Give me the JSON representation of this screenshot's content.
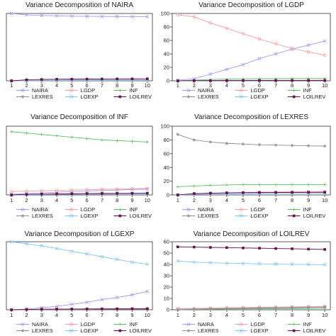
{
  "chart_data": [
    {
      "type": "line",
      "title": "Variance Decomposition of NAIRA",
      "x": [
        1,
        2,
        3,
        4,
        5,
        6,
        7,
        8,
        9,
        10
      ],
      "ylim": [
        0,
        100
      ],
      "yticks": [],
      "series": [
        {
          "name": "NAIRA",
          "color": "#9c9cff",
          "marker": "x",
          "values": [
            100,
            98,
            97,
            96.5,
            96,
            95.8,
            95.6,
            95.4,
            95.3,
            95.2
          ]
        },
        {
          "name": "LGDP",
          "color": "#ff9c9c",
          "marker": "circle",
          "values": [
            0,
            0.3,
            0.5,
            0.6,
            0.7,
            0.8,
            0.9,
            1.0,
            1.0,
            1.1
          ]
        },
        {
          "name": "INF",
          "color": "#5cc05c",
          "marker": "plus",
          "values": [
            0,
            0.2,
            0.4,
            0.5,
            0.6,
            0.6,
            0.7,
            0.7,
            0.7,
            0.8
          ]
        },
        {
          "name": "LEXRES",
          "color": "#909090",
          "marker": "star",
          "values": [
            0,
            0.5,
            0.8,
            1.0,
            1.1,
            1.2,
            1.2,
            1.3,
            1.3,
            1.3
          ]
        },
        {
          "name": "LGEXP",
          "color": "#7fc8ff",
          "marker": "x",
          "values": [
            0,
            0.2,
            0.3,
            0.4,
            0.5,
            0.5,
            0.6,
            0.6,
            0.6,
            0.6
          ]
        },
        {
          "name": "LOILREV",
          "color": "#6a0d4a",
          "marker": "square",
          "values": [
            0,
            1.5,
            2.0,
            2.3,
            2.5,
            2.6,
            2.7,
            2.8,
            2.9,
            3.0
          ]
        }
      ]
    },
    {
      "type": "line",
      "title": "Variance Decomposition of LGDP",
      "x": [
        1,
        2,
        3,
        4,
        5,
        6,
        7,
        8,
        9,
        10
      ],
      "ylim": [
        0,
        100
      ],
      "yticks": [
        0,
        20,
        40,
        60,
        80,
        100
      ],
      "series": [
        {
          "name": "NAIRA",
          "color": "#9c9cff",
          "marker": "x",
          "values": [
            1,
            3,
            10,
            17,
            24,
            33,
            40,
            47,
            53,
            59
          ]
        },
        {
          "name": "LGDP",
          "color": "#ff9c9c",
          "marker": "circle",
          "values": [
            98,
            95,
            86,
            78,
            70,
            62,
            55,
            48,
            43,
            38
          ]
        },
        {
          "name": "INF",
          "color": "#5cc05c",
          "marker": "plus",
          "values": [
            0,
            1,
            2,
            2.5,
            3,
            3.2,
            3.4,
            3.5,
            3.5,
            3.6
          ]
        },
        {
          "name": "LEXRES",
          "color": "#909090",
          "marker": "star",
          "values": [
            0,
            0.3,
            0.5,
            0.6,
            0.7,
            0.8,
            0.8,
            0.9,
            0.9,
            1.0
          ]
        },
        {
          "name": "LGEXP",
          "color": "#7fc8ff",
          "marker": "x",
          "values": [
            0,
            0.2,
            0.3,
            0.3,
            0.4,
            0.4,
            0.5,
            0.5,
            0.5,
            0.5
          ]
        },
        {
          "name": "LOILREV",
          "color": "#6a0d4a",
          "marker": "square",
          "values": [
            0,
            0.2,
            0.3,
            0.4,
            0.5,
            0.5,
            0.5,
            0.6,
            0.6,
            0.6
          ]
        }
      ]
    },
    {
      "type": "line",
      "title": "Variance Decomposition of INF",
      "x": [
        1,
        2,
        3,
        4,
        5,
        6,
        7,
        8,
        9,
        10
      ],
      "ylim": [
        0,
        100
      ],
      "yticks": [],
      "series": [
        {
          "name": "NAIRA",
          "color": "#9c9cff",
          "marker": "x",
          "values": [
            1,
            2,
            3,
            4,
            5,
            5.5,
            6.5,
            7,
            8,
            8.5
          ]
        },
        {
          "name": "LGDP",
          "color": "#ff9c9c",
          "marker": "circle",
          "values": [
            5,
            5.5,
            6,
            6.5,
            7,
            7.5,
            8,
            8.5,
            9,
            9.5
          ]
        },
        {
          "name": "INF",
          "color": "#5cc05c",
          "marker": "plus",
          "values": [
            92,
            90,
            88,
            86,
            84,
            82,
            80,
            79,
            78,
            77
          ]
        },
        {
          "name": "LEXRES",
          "color": "#909090",
          "marker": "star",
          "values": [
            0,
            0.5,
            1,
            1.3,
            1.5,
            1.7,
            1.9,
            2.0,
            2.1,
            2.2
          ]
        },
        {
          "name": "LGEXP",
          "color": "#7fc8ff",
          "marker": "x",
          "values": [
            0,
            0.3,
            0.6,
            0.8,
            1.0,
            1.2,
            1.3,
            1.4,
            1.5,
            1.6
          ]
        },
        {
          "name": "LOILREV",
          "color": "#6a0d4a",
          "marker": "square",
          "values": [
            0,
            0.8,
            1.2,
            1.5,
            1.8,
            2.0,
            2.2,
            2.3,
            2.4,
            2.5
          ]
        }
      ]
    },
    {
      "type": "line",
      "title": "Variance Decomposition of LEXRES",
      "x": [
        1,
        2,
        3,
        4,
        5,
        6,
        7,
        8,
        9,
        10
      ],
      "ylim": [
        0,
        100
      ],
      "yticks": [
        0,
        20,
        40,
        60,
        80,
        100
      ],
      "series": [
        {
          "name": "NAIRA",
          "color": "#9c9cff",
          "marker": "x",
          "values": [
            0,
            1,
            1.5,
            2,
            2.5,
            3,
            3.3,
            3.6,
            3.8,
            4
          ]
        },
        {
          "name": "LGDP",
          "color": "#ff9c9c",
          "marker": "circle",
          "values": [
            0,
            1.5,
            2.5,
            3,
            3.5,
            4,
            4.3,
            4.6,
            4.8,
            5
          ]
        },
        {
          "name": "INF",
          "color": "#5cc05c",
          "marker": "plus",
          "values": [
            12,
            13,
            14,
            14.5,
            15,
            15,
            15,
            15,
            15,
            15
          ]
        },
        {
          "name": "LEXRES",
          "color": "#909090",
          "marker": "star",
          "values": [
            88,
            80,
            77,
            75,
            74,
            73,
            72.5,
            72,
            71.5,
            71
          ]
        },
        {
          "name": "LGEXP",
          "color": "#7fc8ff",
          "marker": "x",
          "values": [
            0,
            1,
            1.5,
            1.8,
            2,
            2.2,
            2.4,
            2.5,
            2.6,
            2.7
          ]
        },
        {
          "name": "LOILREV",
          "color": "#6a0d4a",
          "marker": "square",
          "values": [
            0,
            2,
            2.5,
            3,
            3.3,
            3.5,
            3.6,
            3.7,
            3.8,
            3.9
          ]
        }
      ]
    },
    {
      "type": "line",
      "title": "Variance Decomposition of LGEXP",
      "x": [
        1,
        2,
        3,
        4,
        5,
        6,
        7,
        8,
        9,
        10
      ],
      "ylim": [
        0,
        100
      ],
      "yticks": [],
      "series": [
        {
          "name": "NAIRA",
          "color": "#9c9cff",
          "marker": "x",
          "values": [
            0,
            1,
            3,
            5,
            8,
            11,
            15,
            18,
            22,
            27
          ]
        },
        {
          "name": "LGDP",
          "color": "#ff9c9c",
          "marker": "circle",
          "values": [
            0,
            0.3,
            0.6,
            0.8,
            1.0,
            1.2,
            1.4,
            1.6,
            1.8,
            2.0
          ]
        },
        {
          "name": "INF",
          "color": "#5cc05c",
          "marker": "plus",
          "values": [
            0,
            0.2,
            0.4,
            0.6,
            0.8,
            1.0,
            1.1,
            1.2,
            1.3,
            1.4
          ]
        },
        {
          "name": "LEXRES",
          "color": "#909090",
          "marker": "star",
          "values": [
            0,
            0.2,
            0.4,
            0.5,
            0.6,
            0.7,
            0.8,
            0.8,
            0.9,
            0.9
          ]
        },
        {
          "name": "LGEXP",
          "color": "#7fc8ff",
          "marker": "x",
          "values": [
            100,
            97,
            94,
            90,
            86,
            82,
            78,
            74,
            70,
            67
          ]
        },
        {
          "name": "LOILREV",
          "color": "#6a0d4a",
          "marker": "square",
          "values": [
            0,
            0.5,
            0.8,
            1.0,
            1.1,
            1.2,
            1.3,
            1.3,
            1.4,
            1.4
          ]
        }
      ]
    },
    {
      "type": "line",
      "title": "Variance Decomposition of LOILREV",
      "x": [
        1,
        2,
        3,
        4,
        5,
        6,
        7,
        8,
        9,
        10
      ],
      "ylim": [
        0,
        60
      ],
      "yticks": [
        0,
        10,
        20,
        30,
        40,
        50,
        60
      ],
      "series": [
        {
          "name": "NAIRA",
          "color": "#9c9cff",
          "marker": "x",
          "values": [
            0.5,
            0.8,
            1.0,
            1.2,
            1.5,
            1.7,
            2.0,
            2.2,
            2.5,
            2.8
          ]
        },
        {
          "name": "LGDP",
          "color": "#ff9c9c",
          "marker": "circle",
          "values": [
            1,
            1.2,
            1.5,
            1.8,
            2.0,
            2.2,
            2.4,
            2.6,
            2.8,
            3.0
          ]
        },
        {
          "name": "INF",
          "color": "#5cc05c",
          "marker": "plus",
          "values": [
            0,
            0.3,
            0.5,
            0.7,
            0.8,
            0.9,
            1.0,
            1.1,
            1.2,
            1.3
          ]
        },
        {
          "name": "LEXRES",
          "color": "#909090",
          "marker": "star",
          "values": [
            0,
            0.5,
            0.8,
            1.0,
            1.2,
            1.4,
            1.6,
            1.8,
            2.0,
            2.2
          ]
        },
        {
          "name": "LGEXP",
          "color": "#7fc8ff",
          "marker": "x",
          "values": [
            43,
            42,
            41.5,
            41,
            40.8,
            40.5,
            40.3,
            40.1,
            39.9,
            39.7
          ]
        },
        {
          "name": "LOILREV",
          "color": "#6a0d4a",
          "marker": "square",
          "values": [
            55.5,
            55.3,
            55,
            54.8,
            54.5,
            54.3,
            54,
            53.8,
            53.5,
            53.2
          ]
        }
      ]
    }
  ]
}
